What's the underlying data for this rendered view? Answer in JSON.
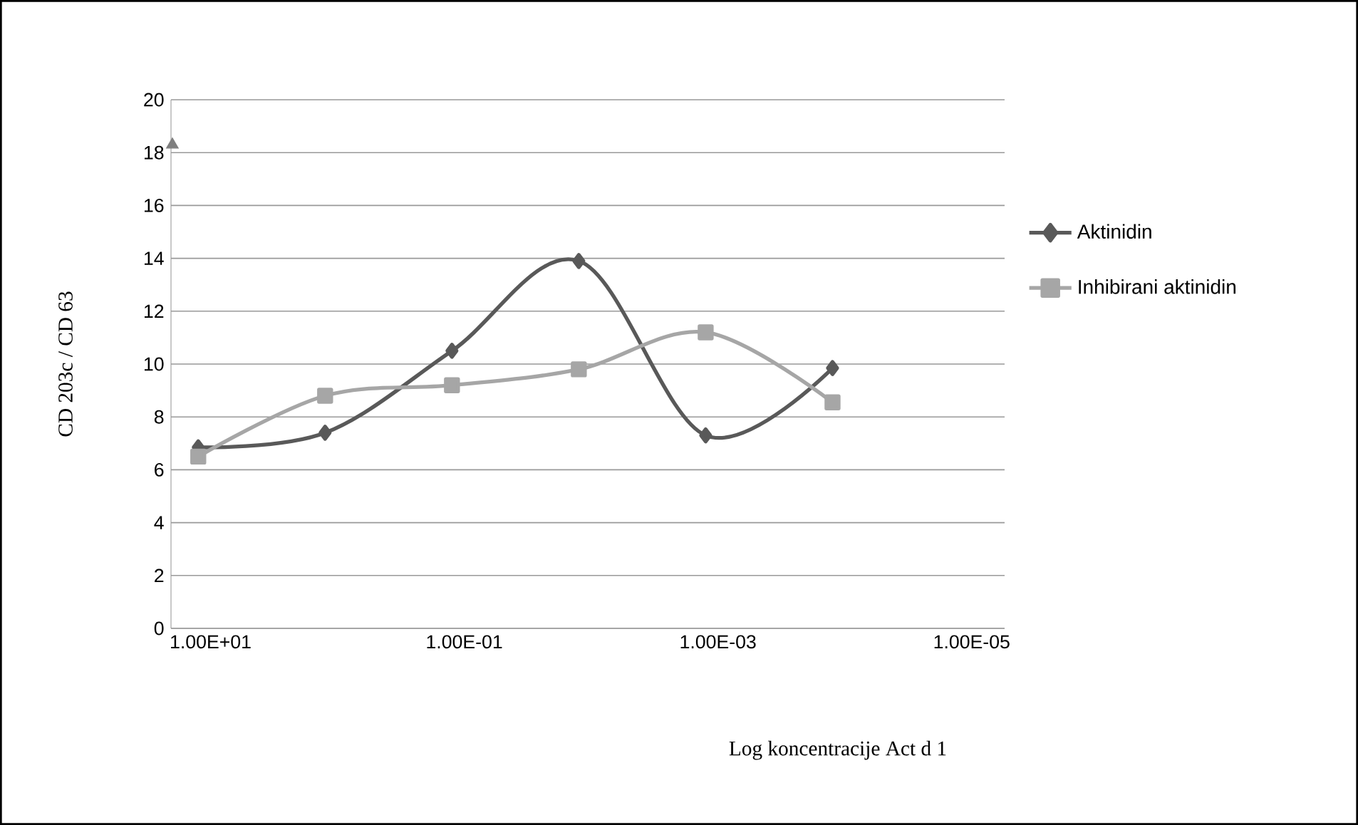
{
  "chart_data": {
    "type": "line",
    "xlabel": "Log koncentracije Act d 1",
    "ylabel": "CD 203c / CD 63",
    "log": "x",
    "xlim": [
      20.5,
      5.5e-06
    ],
    "ylim": [
      0,
      20
    ],
    "xticks": [
      {
        "value": 10,
        "label": "1.00E+01"
      },
      {
        "value": 0.1,
        "label": "1.00E-01"
      },
      {
        "value": 0.001,
        "label": "1.00E-03"
      },
      {
        "value": 1e-05,
        "label": "1.00E-05"
      }
    ],
    "yticks": [
      0,
      2,
      4,
      6,
      8,
      10,
      12,
      14,
      16,
      18,
      20
    ],
    "grid": "y",
    "legend": "right",
    "series": [
      {
        "name": "Aktinidin",
        "marker": "diamond",
        "color": "#595959",
        "x": [
          12.5,
          1.25,
          0.125,
          0.0125,
          0.00125,
          0.000125
        ],
        "values": [
          6.85,
          7.4,
          10.5,
          13.9,
          7.3,
          9.85
        ]
      },
      {
        "name": "Inhibirani aktinidin",
        "marker": "square",
        "color": "#a6a6a6",
        "x": [
          12.5,
          1.25,
          0.125,
          0.0125,
          0.00125,
          0.000125
        ],
        "values": [
          6.5,
          8.8,
          9.2,
          9.8,
          11.2,
          8.55
        ]
      },
      {
        "type": "scatter",
        "marker": "triangle",
        "color": "#7f7f7f",
        "x": [
          20
        ],
        "values": [
          18.3
        ]
      }
    ]
  }
}
